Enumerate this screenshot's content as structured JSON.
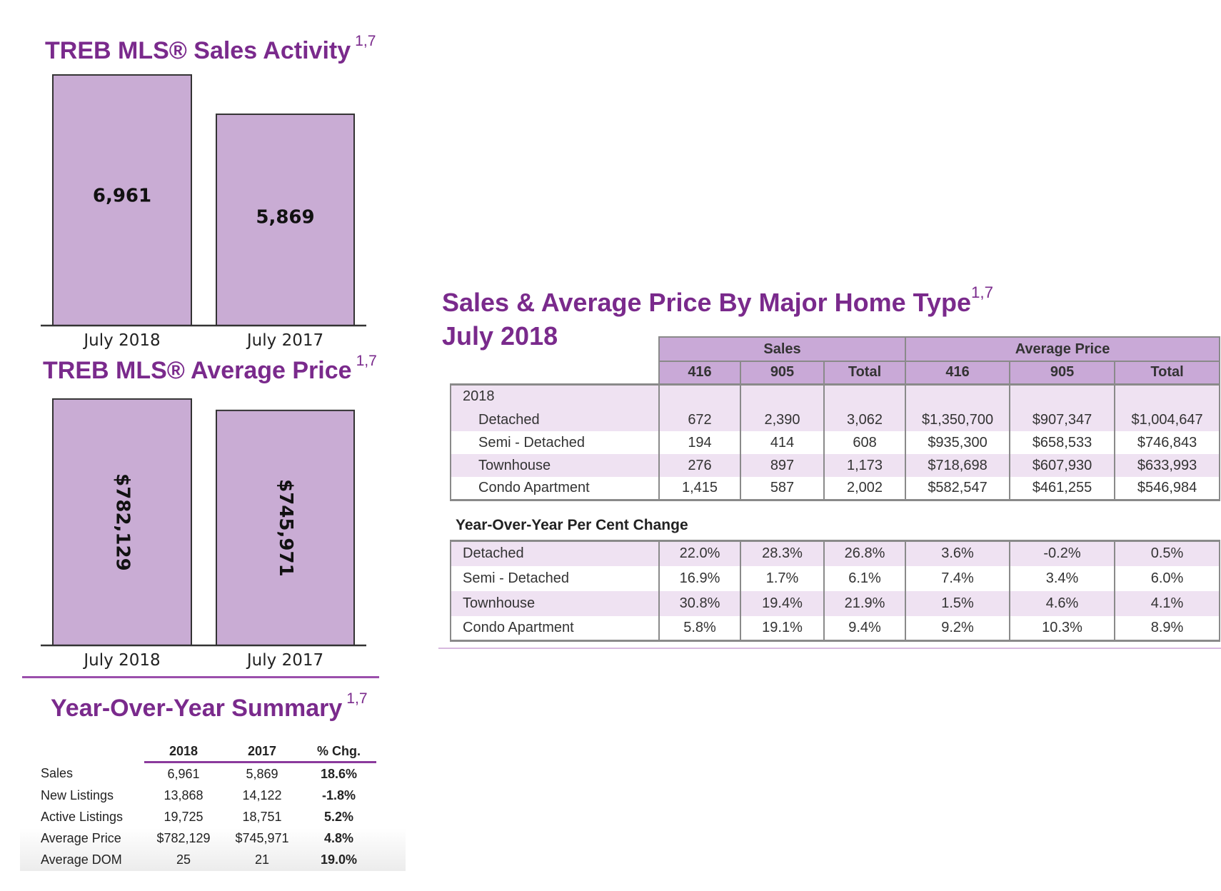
{
  "colors": {
    "title": "#7a2a8c",
    "bar_fill": "#c9acd4",
    "header_fill": "#c9a9d7",
    "row_tint": "#efe2f2"
  },
  "chart_data": [
    {
      "type": "bar",
      "title": "TREB MLS® Sales Activity",
      "title_sup": "1,7",
      "categories": [
        "July 2018",
        "July 2017"
      ],
      "values": [
        6961,
        5869
      ],
      "value_labels": [
        "6,961",
        "5,869"
      ],
      "ylim": [
        0,
        7000
      ],
      "grid": false
    },
    {
      "type": "bar",
      "title": "TREB MLS® Average Price",
      "title_sup": "1,7",
      "categories": [
        "July 2018",
        "July 2017"
      ],
      "values": [
        782129,
        745971
      ],
      "value_labels": [
        "$782,129",
        "$745,971"
      ],
      "ylim": [
        0,
        800000
      ],
      "grid": false
    }
  ],
  "summary": {
    "title": "Year-Over-Year Summary",
    "title_sup": "1,7",
    "headers": [
      "",
      "2018",
      "2017",
      "% Chg."
    ],
    "rows": [
      [
        "Sales",
        "6,961",
        "5,869",
        "18.6%"
      ],
      [
        "New Listings",
        "13,868",
        "14,122",
        "-1.8%"
      ],
      [
        "Active Listings",
        "19,725",
        "18,751",
        "5.2%"
      ],
      [
        "Average Price",
        "$782,129",
        "$745,971",
        "4.8%"
      ],
      [
        "Average DOM",
        "25",
        "21",
        "19.0%"
      ]
    ]
  },
  "home_type": {
    "title": "Sales & Average Price By Major Home Type",
    "title_sup": "1,7",
    "subtitle": "July 2018",
    "group_headers": [
      "Sales",
      "Average Price"
    ],
    "sub_headers": [
      "416",
      "905",
      "Total",
      "416",
      "905",
      "Total"
    ],
    "year_label": "2018",
    "rows": [
      [
        "Detached",
        "672",
        "2,390",
        "3,062",
        "$1,350,700",
        "$907,347",
        "$1,004,647"
      ],
      [
        "Semi - Detached",
        "194",
        "414",
        "608",
        "$935,300",
        "$658,533",
        "$746,843"
      ],
      [
        "Townhouse",
        "276",
        "897",
        "1,173",
        "$718,698",
        "$607,930",
        "$633,993"
      ],
      [
        "Condo Apartment",
        "1,415",
        "587",
        "2,002",
        "$582,547",
        "$461,255",
        "$546,984"
      ]
    ],
    "yoy_title": "Year-Over-Year Per Cent Change",
    "yoy_rows": [
      [
        "Detached",
        "22.0%",
        "28.3%",
        "26.8%",
        "3.6%",
        "-0.2%",
        "0.5%"
      ],
      [
        "Semi - Detached",
        "16.9%",
        "1.7%",
        "6.1%",
        "7.4%",
        "3.4%",
        "6.0%"
      ],
      [
        "Townhouse",
        "30.8%",
        "19.4%",
        "21.9%",
        "1.5%",
        "4.6%",
        "4.1%"
      ],
      [
        "Condo Apartment",
        "5.8%",
        "19.1%",
        "9.4%",
        "9.2%",
        "10.3%",
        "8.9%"
      ]
    ]
  }
}
